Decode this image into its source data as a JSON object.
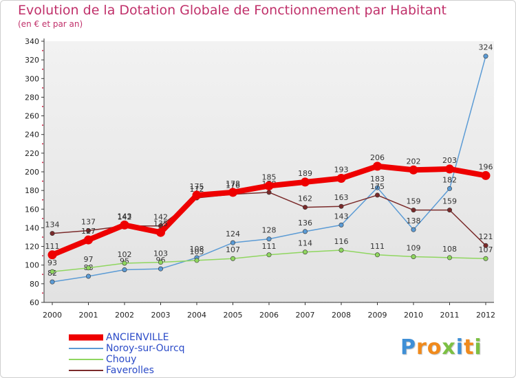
{
  "chart_data": {
    "type": "line",
    "title": "Evolution de la Dotation Globale de Fonctionnement par Habitant",
    "subtitle": "(en € et par an)",
    "categories": [
      "2000",
      "2001",
      "2002",
      "2003",
      "2004",
      "2005",
      "2006",
      "2007",
      "2008",
      "2009",
      "2010",
      "2011",
      "2012"
    ],
    "ylim": [
      60,
      340
    ],
    "yticks": [
      60,
      80,
      100,
      120,
      140,
      160,
      180,
      200,
      220,
      240,
      260,
      280,
      300,
      320,
      340
    ],
    "grid": false,
    "legend_position": "bottom-left",
    "series": [
      {
        "name": "ANCIENVILLE",
        "color": "#ee0000",
        "emphasis": "thick",
        "values": [
          111,
          127,
          143,
          135,
          175,
          178,
          185,
          189,
          193,
          206,
          202,
          203,
          196
        ]
      },
      {
        "name": "Noroy-sur-Ourcq",
        "color": "#5b9bd5",
        "emphasis": "thin",
        "values": [
          82,
          88,
          95,
          96,
          108,
          124,
          128,
          136,
          143,
          183,
          138,
          182,
          324
        ]
      },
      {
        "name": "Chouy",
        "color": "#8fd65f",
        "emphasis": "thin",
        "values": [
          93,
          97,
          102,
          103,
          105,
          107,
          111,
          114,
          116,
          111,
          109,
          108,
          107
        ]
      },
      {
        "name": "Faverolles",
        "color": "#7a2a2a",
        "emphasis": "thin",
        "values": [
          134,
          137,
          142,
          142,
          172,
          176,
          178,
          162,
          163,
          175,
          159,
          159,
          121
        ]
      }
    ]
  },
  "brand": {
    "letters": [
      {
        "ch": "P",
        "color": "#3f8fd6"
      },
      {
        "ch": "r",
        "color": "#f08a1c"
      },
      {
        "ch": "o",
        "color": "#f08a1c"
      },
      {
        "ch": "x",
        "color": "#7cc043"
      },
      {
        "ch": "i",
        "color": "#3f8fd6"
      },
      {
        "ch": "t",
        "color": "#f08a1c"
      },
      {
        "ch": "i",
        "color": "#7cc043"
      }
    ]
  }
}
